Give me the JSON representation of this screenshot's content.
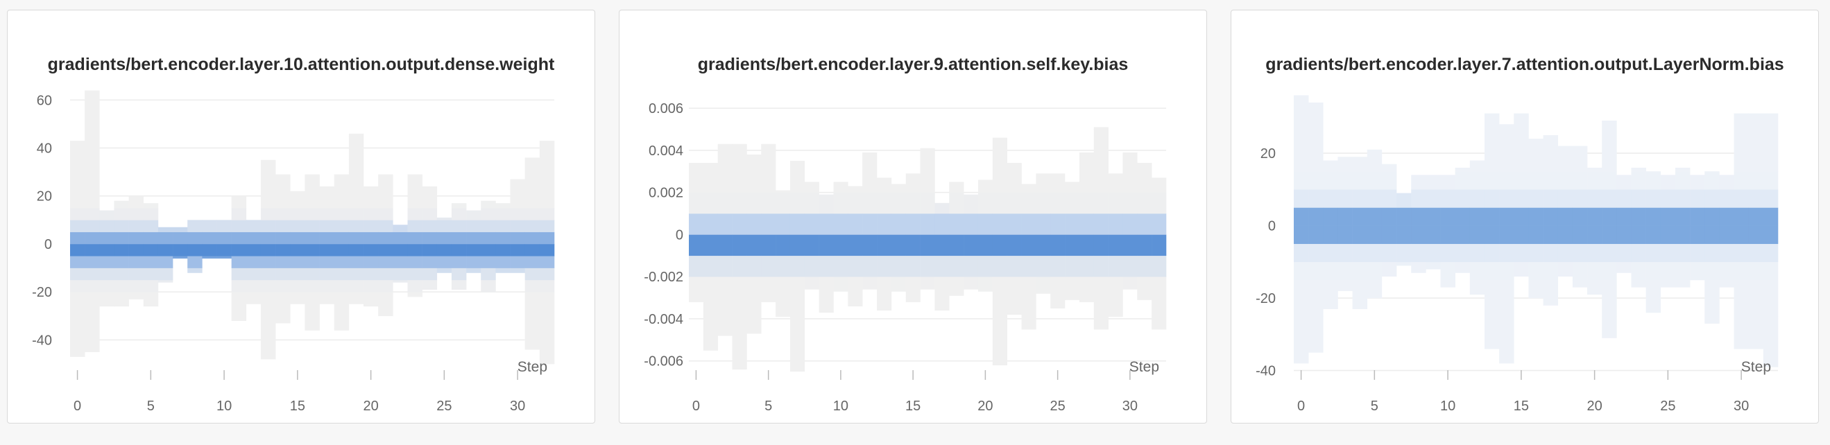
{
  "chart_data": [
    {
      "type": "heatmap",
      "title": "gradients/bert.encoder.layer.10.attention.output.dense.weight",
      "xlabel": "Step",
      "ylabel": "",
      "x_ticks": [
        "0",
        "5",
        "10",
        "15",
        "20",
        "25",
        "30"
      ],
      "y_ticks": [
        "60",
        "40",
        "20",
        "0",
        "-20",
        "-40"
      ],
      "xlim": [
        -0.5,
        32.5
      ],
      "ylim": [
        -50,
        65
      ],
      "grid": true,
      "bin_width": 5,
      "steps": 33,
      "focus": -2,
      "ranges": [
        [
          -47,
          43
        ],
        [
          -45,
          64
        ],
        [
          -26,
          14
        ],
        [
          -26,
          18
        ],
        [
          -23,
          20
        ],
        [
          -26,
          17
        ],
        [
          -16,
          7
        ],
        [
          -6,
          7
        ],
        [
          -12,
          10
        ],
        [
          -6,
          10
        ],
        [
          -6,
          10
        ],
        [
          -32,
          20
        ],
        [
          -25,
          10
        ],
        [
          -48,
          35
        ],
        [
          -33,
          29
        ],
        [
          -25,
          22
        ],
        [
          -36,
          29
        ],
        [
          -25,
          24
        ],
        [
          -36,
          29
        ],
        [
          -25,
          46
        ],
        [
          -26,
          24
        ],
        [
          -30,
          29
        ],
        [
          -16,
          8
        ],
        [
          -22,
          29
        ],
        [
          -19,
          24
        ],
        [
          -12,
          11
        ],
        [
          -19,
          17
        ],
        [
          -12,
          14
        ],
        [
          -20,
          18
        ],
        [
          -12,
          17
        ],
        [
          -12,
          27
        ],
        [
          -44,
          36
        ],
        [
          -50,
          43
        ]
      ],
      "colors": {
        "core": "#3f7fd0",
        "spread": "#bcd1ee",
        "outlier": "#f0f0f0"
      }
    },
    {
      "type": "heatmap",
      "title": "gradients/bert.encoder.layer.9.attention.self.key.bias",
      "xlabel": "Step",
      "ylabel": "",
      "x_ticks": [
        "0",
        "5",
        "10",
        "15",
        "20",
        "25",
        "30"
      ],
      "y_ticks": [
        "0.006",
        "0.004",
        "0.002",
        "0",
        "-0.002",
        "-0.004",
        "-0.006"
      ],
      "xlim": [
        -0.5,
        32.5
      ],
      "ylim": [
        -0.0068,
        0.0062
      ],
      "grid": true,
      "bin_width": 0.001,
      "steps": 33,
      "focus": -0.0003,
      "ranges": [
        [
          -0.0032,
          0.0034
        ],
        [
          -0.0055,
          0.0034
        ],
        [
          -0.0048,
          0.0043
        ],
        [
          -0.0064,
          0.0043
        ],
        [
          -0.0047,
          0.0038
        ],
        [
          -0.0032,
          0.0043
        ],
        [
          -0.0039,
          0.0021
        ],
        [
          -0.0065,
          0.0035
        ],
        [
          -0.0026,
          0.0025
        ],
        [
          -0.0037,
          0.0019
        ],
        [
          -0.0027,
          0.0025
        ],
        [
          -0.0034,
          0.0023
        ],
        [
          -0.0026,
          0.0039
        ],
        [
          -0.0036,
          0.0027
        ],
        [
          -0.0027,
          0.0024
        ],
        [
          -0.0032,
          0.0029
        ],
        [
          -0.0026,
          0.0041
        ],
        [
          -0.0036,
          0.0015
        ],
        [
          -0.0029,
          0.0025
        ],
        [
          -0.0026,
          0.0019
        ],
        [
          -0.0027,
          0.0026
        ],
        [
          -0.0062,
          0.0046
        ],
        [
          -0.0038,
          0.0034
        ],
        [
          -0.0045,
          0.0024
        ],
        [
          -0.0028,
          0.0029
        ],
        [
          -0.0035,
          0.0029
        ],
        [
          -0.0031,
          0.0025
        ],
        [
          -0.0032,
          0.0039
        ],
        [
          -0.0045,
          0.0051
        ],
        [
          -0.0039,
          0.0029
        ],
        [
          -0.0026,
          0.0039
        ],
        [
          -0.0031,
          0.0034
        ],
        [
          -0.0045,
          0.0027
        ]
      ],
      "colors": {
        "core": "#3f7fd0",
        "spread": "#bcd1ee",
        "outlier": "#f0f0f0"
      }
    },
    {
      "type": "heatmap",
      "title": "gradients/bert.encoder.layer.7.attention.output.LayerNorm.bias",
      "xlabel": "Step",
      "ylabel": "",
      "x_ticks": [
        "0",
        "5",
        "10",
        "15",
        "20",
        "25",
        "30"
      ],
      "y_ticks": [
        "20",
        "0",
        "-20",
        "-40"
      ],
      "xlim": [
        -0.5,
        32.5
      ],
      "ylim": [
        -42,
        38
      ],
      "grid": true,
      "bin_width": 5,
      "steps": 33,
      "focus": 0,
      "ranges": [
        [
          -38,
          36
        ],
        [
          -35,
          34
        ],
        [
          -23,
          18
        ],
        [
          -18,
          19
        ],
        [
          -23,
          19
        ],
        [
          -20,
          21
        ],
        [
          -14,
          17
        ],
        [
          -11,
          9
        ],
        [
          -13,
          14
        ],
        [
          -12,
          14
        ],
        [
          -17,
          14
        ],
        [
          -13,
          16
        ],
        [
          -19,
          18
        ],
        [
          -34,
          31
        ],
        [
          -38,
          28
        ],
        [
          -14,
          31
        ],
        [
          -20,
          24
        ],
        [
          -22,
          25
        ],
        [
          -14,
          22
        ],
        [
          -17,
          22
        ],
        [
          -19,
          16
        ],
        [
          -31,
          29
        ],
        [
          -13,
          14
        ],
        [
          -17,
          16
        ],
        [
          -24,
          15
        ],
        [
          -17,
          14
        ],
        [
          -17,
          16
        ],
        [
          -15,
          14
        ],
        [
          -27,
          15
        ],
        [
          -17,
          14
        ],
        [
          -34,
          31
        ],
        [
          -34,
          31
        ],
        [
          -39,
          31
        ]
      ],
      "colors": {
        "core": "#3f7fd0",
        "spread": "#c9dbf1",
        "outlier": "#eef2f8"
      }
    }
  ]
}
